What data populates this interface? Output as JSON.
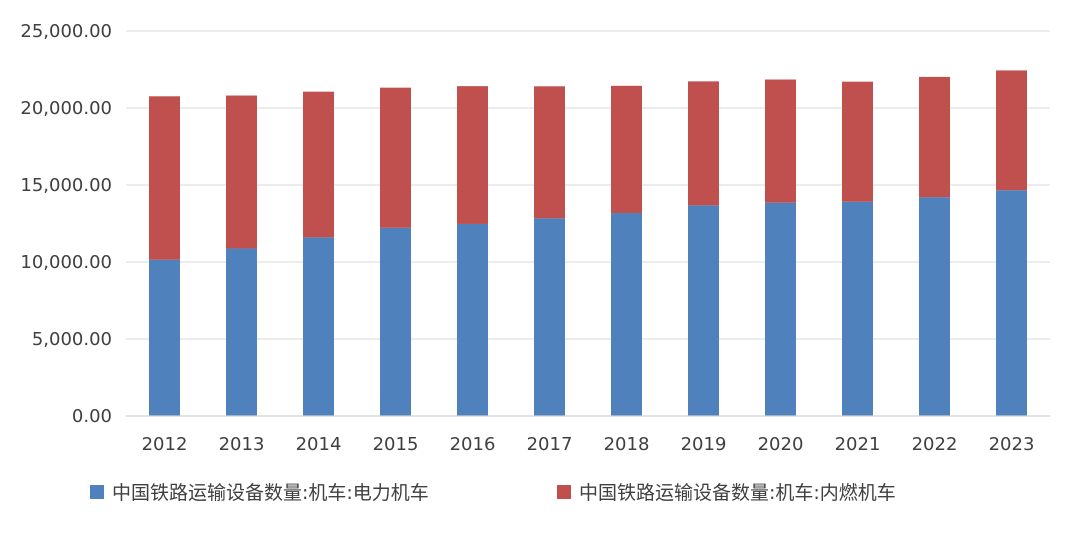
{
  "chart_data": {
    "type": "bar",
    "stacked": true,
    "categories": [
      "2012",
      "2013",
      "2014",
      "2015",
      "2016",
      "2017",
      "2018",
      "2019",
      "2020",
      "2021",
      "2022",
      "2023"
    ],
    "series": [
      {
        "name": "中国铁路运输设备数量:机车:电力机车",
        "color": "#4F81BD",
        "values": [
          10150,
          10880,
          11600,
          12220,
          12470,
          12840,
          13180,
          13680,
          13850,
          13910,
          14210,
          14660
        ]
      },
      {
        "name": "中国铁路运输设备数量:机车:内燃机车",
        "color": "#C0504D",
        "values": [
          10610,
          9930,
          9460,
          9100,
          8950,
          8570,
          8260,
          8050,
          8000,
          7800,
          7810,
          7780
        ]
      }
    ],
    "yticks": [
      "0.00",
      "5,000.00",
      "10,000.00",
      "15,000.00",
      "20,000.00",
      "25,000.00"
    ],
    "ylim": [
      0,
      25000
    ],
    "grid": true,
    "legend_position": "bottom"
  }
}
